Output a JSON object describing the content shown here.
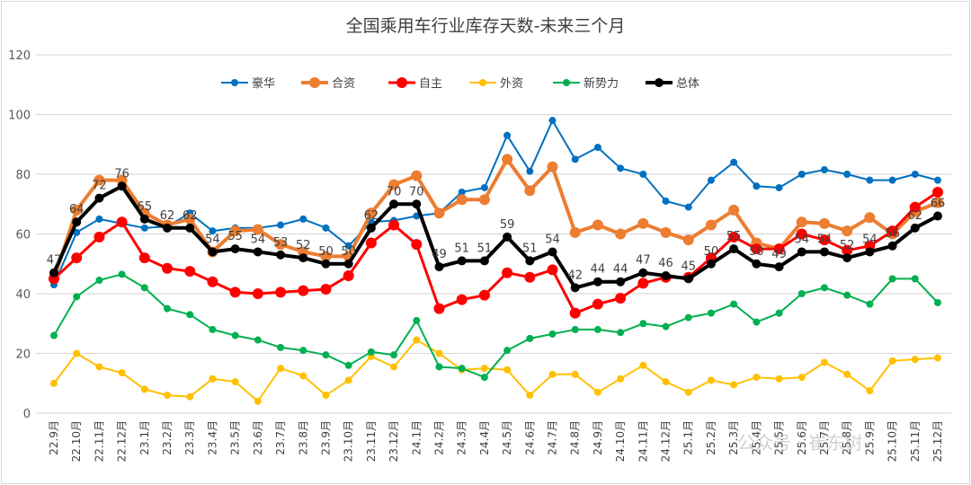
{
  "chart_data": {
    "type": "line",
    "title": "全国乘用车行业库存天数-未来三个月",
    "xlabel": "",
    "ylabel": "",
    "ylim": [
      0,
      120
    ],
    "yticks": [
      0,
      20,
      40,
      60,
      80,
      100,
      120
    ],
    "grid": true,
    "legend_position": "top",
    "categories": [
      "22.9月",
      "22.10月",
      "22.11月",
      "22.12月",
      "23.1月",
      "23.2月",
      "23.3月",
      "23.4月",
      "23.5月",
      "23.6月",
      "23.7月",
      "23.8月",
      "23.9月",
      "23.10月",
      "23.11月",
      "23.12月",
      "24.1月",
      "24.2月",
      "24.3月",
      "24.4月",
      "24.5月",
      "24.6月",
      "24.7月",
      "24.8月",
      "24.9月",
      "24.10月",
      "24.11月",
      "24.12月",
      "25.1月",
      "25.2月",
      "25.3月",
      "25.4月",
      "25.5月",
      "25.6月",
      "25.7月",
      "25.8月",
      "25.9月",
      "25.10月",
      "25.11月",
      "25.12月"
    ],
    "series": [
      {
        "name": "豪华",
        "color": "#0070c0",
        "width": 2,
        "marker": 4,
        "values": [
          43,
          60.5,
          65,
          63.5,
          62,
          62.5,
          67,
          61,
          62,
          62,
          63,
          65,
          62,
          56,
          64,
          64.5,
          66,
          67,
          74,
          75.5,
          93,
          81,
          98,
          85,
          89,
          82,
          80,
          71,
          69,
          78,
          84,
          76,
          75.5,
          80,
          81.5,
          80,
          78,
          78,
          80,
          78
        ]
      },
      {
        "name": "合资",
        "color": "#ed7d31",
        "width": 4,
        "marker": 6,
        "values": [
          45,
          68,
          78,
          78,
          67,
          63,
          65,
          54,
          61,
          61.5,
          56.5,
          54,
          52.5,
          52.5,
          67,
          76.5,
          79.5,
          67,
          71.5,
          71.5,
          85,
          74.5,
          82.5,
          60.5,
          63,
          60,
          63.5,
          60.5,
          58,
          63,
          68,
          57,
          55,
          64,
          63.5,
          61,
          65.5,
          60,
          67.5,
          70.5
        ]
      },
      {
        "name": "自主",
        "color": "#ff0000",
        "width": 3,
        "marker": 6,
        "values": [
          45,
          52,
          59,
          64,
          52,
          48.5,
          47.5,
          44,
          40.5,
          40,
          40.5,
          41,
          41.5,
          46,
          57,
          63,
          56.5,
          35,
          38,
          39.5,
          47,
          45.5,
          48,
          33.5,
          36.5,
          38.5,
          43.5,
          45.5,
          45.5,
          52,
          59,
          55,
          55,
          60,
          58,
          54.5,
          56,
          61,
          69,
          74
        ]
      },
      {
        "name": "外资",
        "color": "#ffc000",
        "width": 2,
        "marker": 4,
        "values": [
          10,
          20,
          15.5,
          13.5,
          8,
          6,
          5.5,
          11.5,
          10.5,
          4,
          15,
          12.5,
          6,
          11,
          19,
          15.5,
          24.5,
          20,
          14.5,
          15,
          14.5,
          6,
          13,
          13,
          7,
          11.5,
          16,
          10.5,
          7,
          11,
          9.5,
          12,
          11.5,
          12,
          17,
          13,
          7.5,
          17.5,
          18,
          18.5
        ]
      },
      {
        "name": "新势力",
        "color": "#00b050",
        "width": 2,
        "marker": 4,
        "values": [
          26,
          39,
          44.5,
          46.5,
          42,
          35,
          33,
          28,
          26,
          24.5,
          22,
          21,
          19.5,
          16,
          20.5,
          19.5,
          31,
          15.5,
          15,
          12,
          21,
          25,
          26.5,
          28,
          28,
          27,
          30,
          29,
          32,
          33.5,
          36.5,
          30.5,
          33.5,
          40,
          42,
          39.5,
          36.5,
          45,
          45,
          37
        ]
      },
      {
        "name": "总体",
        "color": "#000000",
        "width": 4,
        "marker": 5,
        "labeled": true,
        "values": [
          47,
          64,
          72,
          76,
          65,
          62,
          62,
          54,
          55,
          54,
          53,
          52,
          50,
          50,
          62,
          70,
          70,
          49,
          51,
          51,
          59,
          51,
          54,
          42,
          44,
          44,
          47,
          46,
          45,
          50,
          55,
          50,
          49,
          54,
          54,
          52,
          54,
          56,
          62,
          66
        ]
      }
    ]
  },
  "watermark": "公众号 · 崔东树"
}
